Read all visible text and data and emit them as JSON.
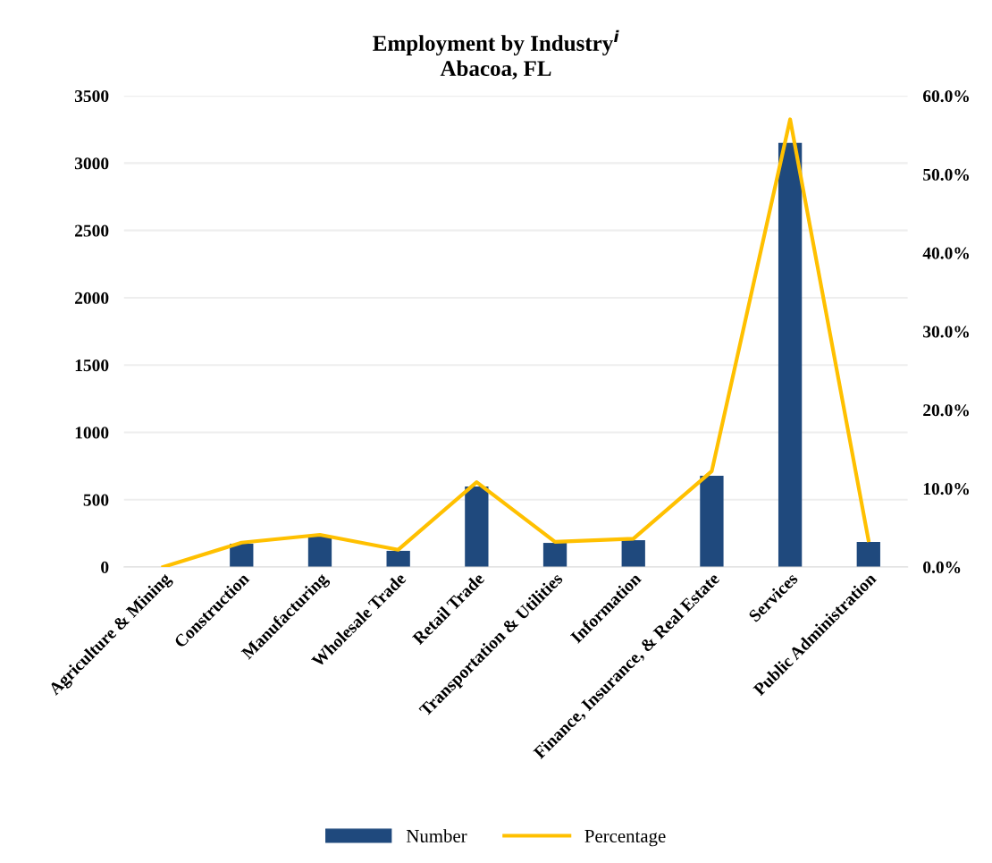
{
  "chart_data": {
    "type": "bar",
    "title": "Employment by Industry$^{i}$\nAbacoa, FL",
    "categories": [
      "Agriculture & Mining",
      "Construction",
      "Manufacturing",
      "Wholesale Trade",
      "Retail Trade",
      "Transportation & Utilities",
      "Information",
      "Finance, Insurance, & Real Estate",
      "Services",
      "Public Administration"
    ],
    "series": [
      {
        "name": "Number",
        "color": "#1f497d",
        "values": [
          0,
          173,
          226,
          120,
          598,
          179,
          199,
          677,
          3150,
          186
        ]
      },
      {
        "name": "Percentage",
        "type": "line",
        "axis": "y2",
        "color": "#ffc000",
        "values": [
          0.0,
          3.1,
          4.1,
          2.2,
          10.8,
          3.2,
          3.6,
          12.2,
          57.0,
          3.4
        ]
      }
    ],
    "ylim": [
      0,
      3500
    ],
    "yticks": [
      0,
      500,
      1000,
      1500,
      2000,
      2500,
      3000,
      3500
    ],
    "y2lim": [
      0,
      60
    ],
    "y2ticks": [
      {
        "value": 0,
        "label": "0.0%"
      },
      {
        "value": 10,
        "label": "10.0%"
      },
      {
        "value": 20,
        "label": "20.0%"
      },
      {
        "value": 30,
        "label": "30.0%"
      },
      {
        "value": 40,
        "label": "40.0%"
      },
      {
        "value": 50,
        "label": "50.0%"
      },
      {
        "value": 60,
        "label": "60.0%"
      }
    ],
    "grid": "y",
    "legend": "bottom"
  }
}
